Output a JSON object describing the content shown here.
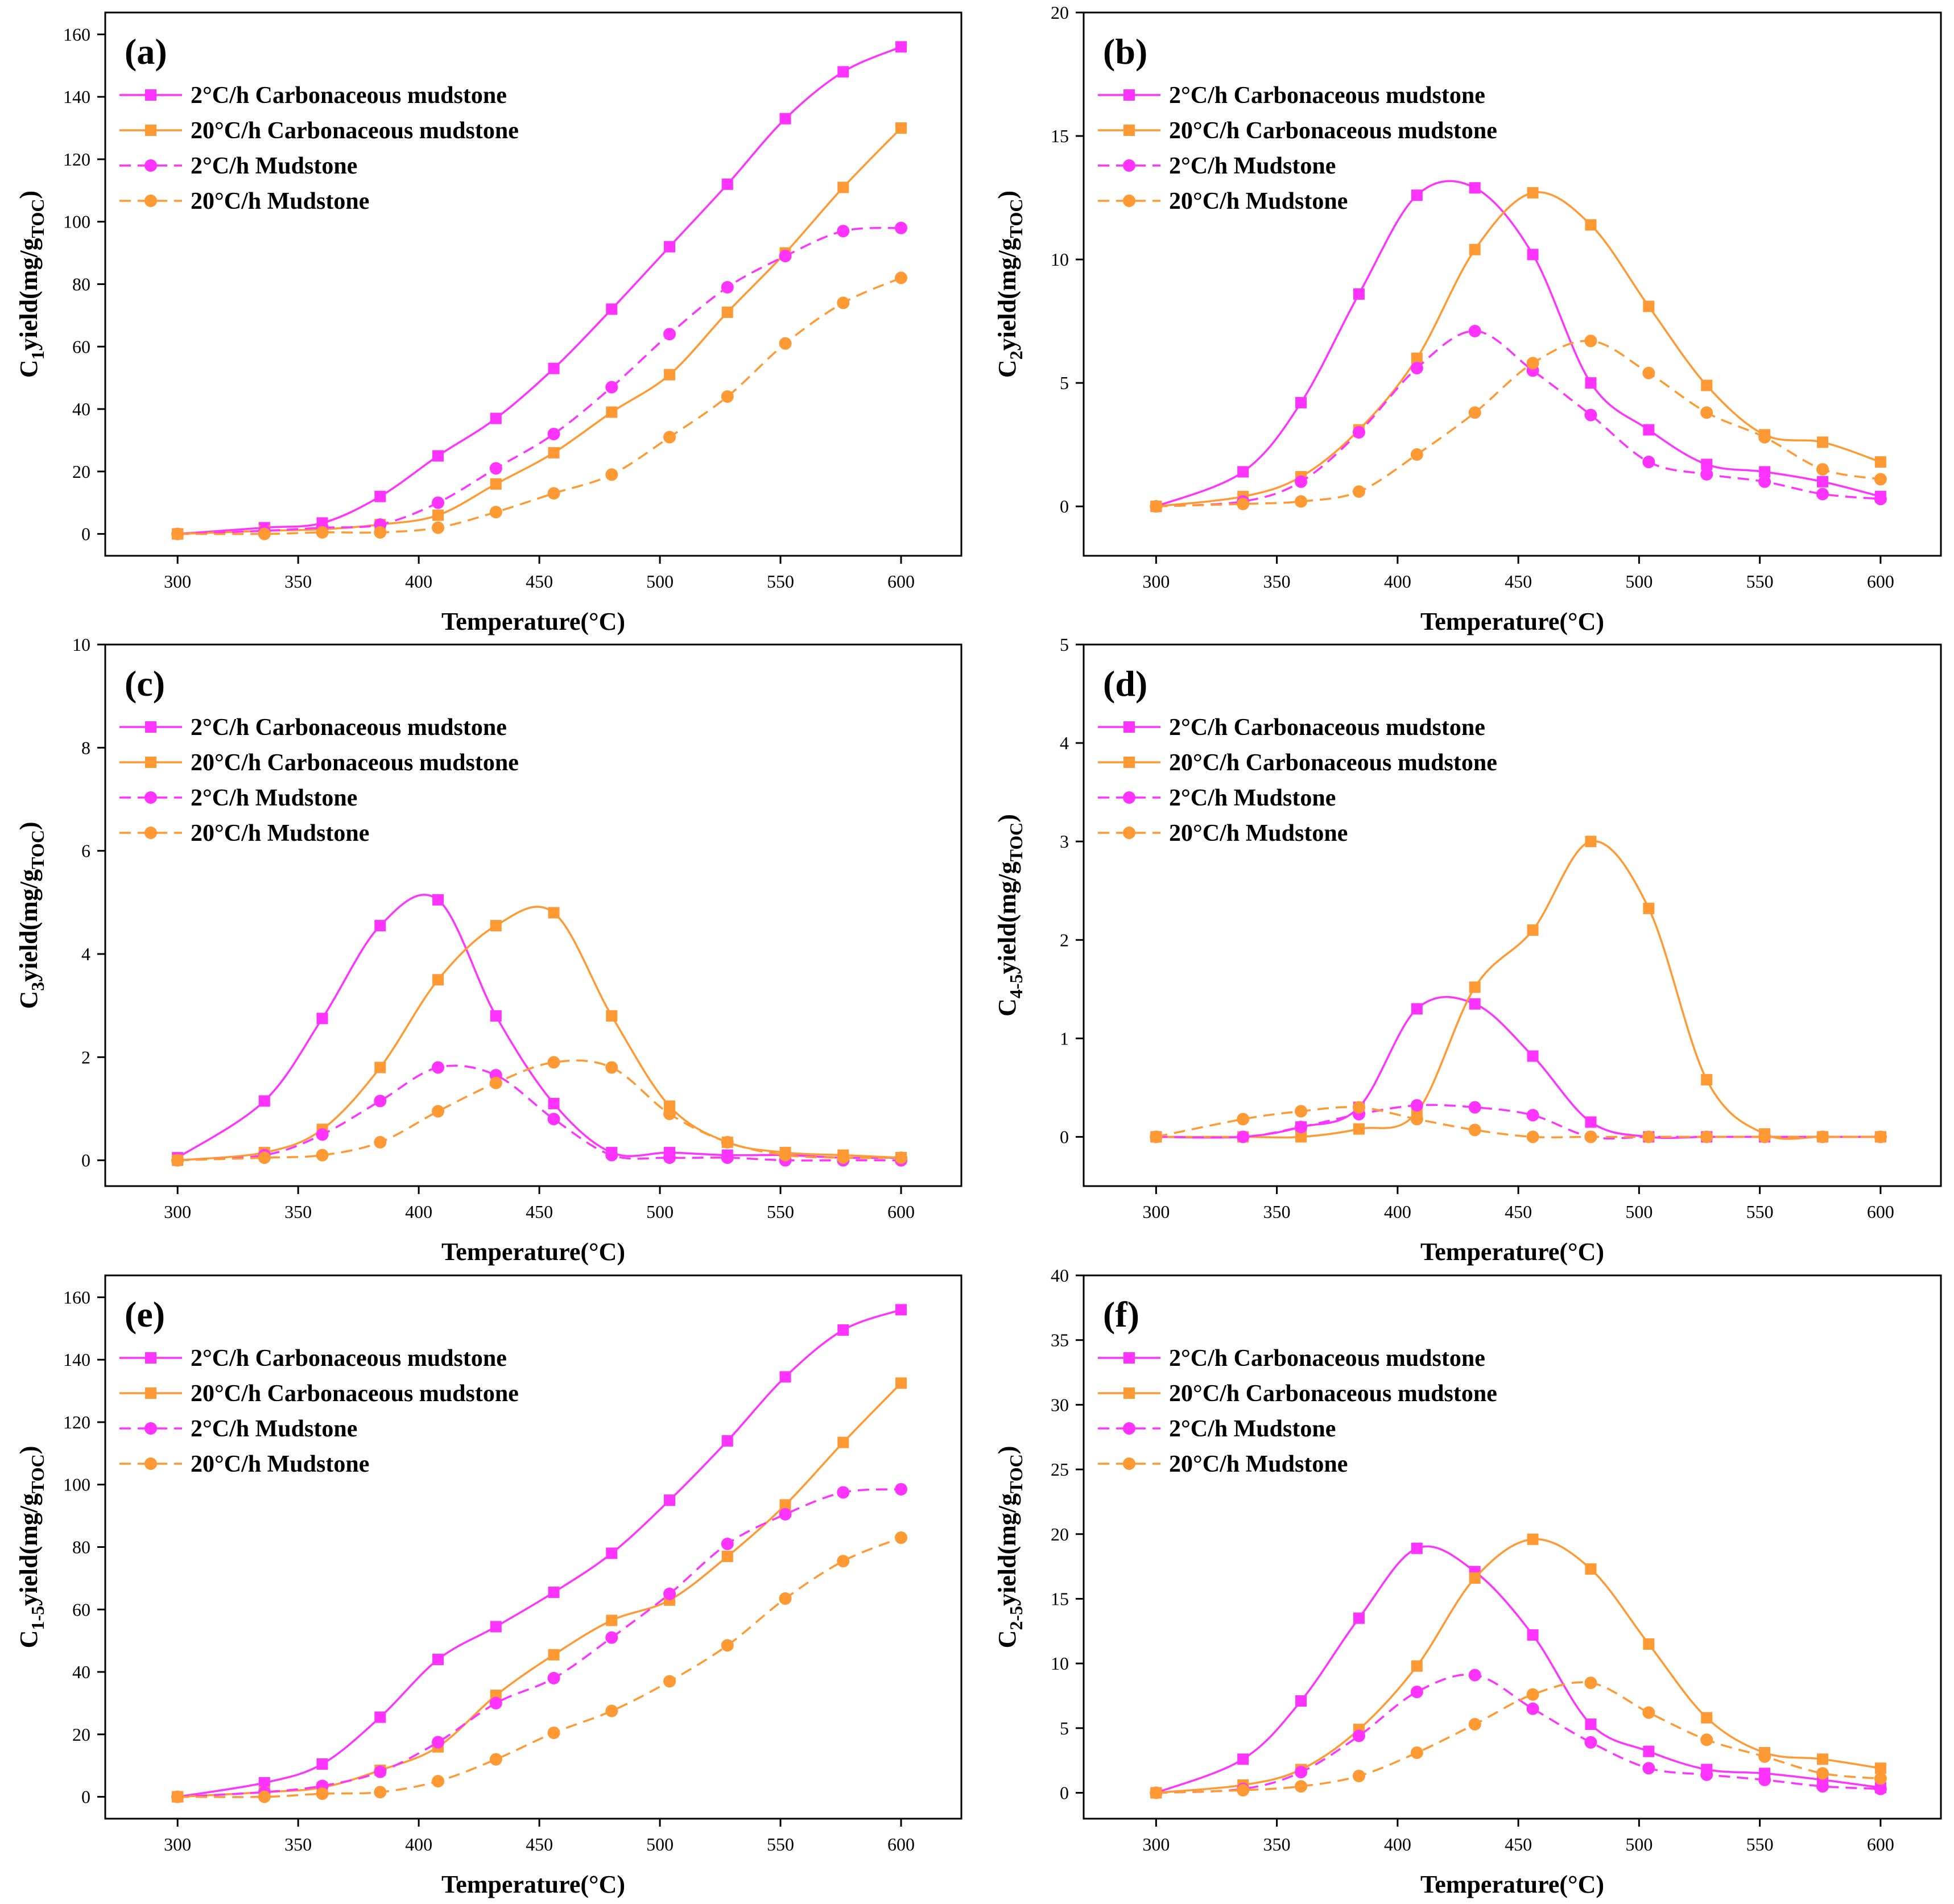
{
  "figure": {
    "x_label": "Temperature(°C)",
    "legend_labels": [
      "2°C/h Carbonaceous mudstone",
      "20°C/h Carbonaceous mudstone",
      "2°C/h Mudstone",
      "20°C/h Mudstone"
    ],
    "colors": {
      "magenta": "#ff33ff",
      "orange": "#ff9933",
      "axis": "#000000"
    }
  },
  "chart_data": [
    {
      "type": "line",
      "panel": "(a)",
      "ylabel_main": "C",
      "ylabel_sub": "1",
      "ylabel_rest": "yield(mg/g",
      "ylabel_sub2": "TOC",
      "ylabel_end": ")",
      "xlabel": "Temperature(°C)",
      "xlim": [
        270,
        625
      ],
      "ylim": [
        -7,
        167
      ],
      "xticks": [
        300,
        350,
        400,
        450,
        500,
        550,
        600
      ],
      "yticks": [
        0,
        20,
        40,
        60,
        80,
        100,
        120,
        140,
        160
      ],
      "x": [
        300,
        336,
        360,
        384,
        408,
        432,
        456,
        480,
        504,
        528,
        552,
        576,
        600
      ],
      "series": [
        {
          "name": "2°C/h Carbonaceous mudstone",
          "color": "#ff33ff",
          "marker": "square",
          "dash": false,
          "values": [
            0,
            2,
            3.5,
            12,
            25,
            37,
            53,
            72,
            92,
            112,
            133,
            148,
            156
          ]
        },
        {
          "name": "20°C/h Carbonaceous mudstone",
          "color": "#ff9933",
          "marker": "square",
          "dash": false,
          "values": [
            0,
            1,
            1.5,
            3,
            6,
            16,
            26,
            39,
            51,
            71,
            90,
            111,
            130
          ]
        },
        {
          "name": "2°C/h Mudstone",
          "color": "#ff33ff",
          "marker": "circle",
          "dash": true,
          "values": [
            0,
            1,
            2,
            3,
            10,
            21,
            32,
            47,
            64,
            79,
            89,
            97,
            98
          ]
        },
        {
          "name": "20°C/h Mudstone",
          "color": "#ff9933",
          "marker": "circle",
          "dash": true,
          "values": [
            0,
            0,
            0.5,
            0.5,
            2,
            7,
            13,
            19,
            31,
            44,
            61,
            74,
            82
          ]
        }
      ]
    },
    {
      "type": "line",
      "panel": "(b)",
      "ylabel_main": "C",
      "ylabel_sub": "2",
      "ylabel_rest": "yield(mg/g",
      "ylabel_sub2": "TOC",
      "ylabel_end": ")",
      "xlabel": "Temperature(°C)",
      "xlim": [
        270,
        625
      ],
      "ylim": [
        -2,
        20
      ],
      "xticks": [
        300,
        350,
        400,
        450,
        500,
        550,
        600
      ],
      "yticks": [
        0,
        5,
        10,
        15,
        20
      ],
      "x": [
        300,
        336,
        360,
        384,
        408,
        432,
        456,
        480,
        504,
        528,
        552,
        576,
        600
      ],
      "series": [
        {
          "name": "2°C/h Carbonaceous mudstone",
          "color": "#ff33ff",
          "marker": "square",
          "dash": false,
          "values": [
            0,
            1.4,
            4.2,
            8.6,
            12.6,
            12.9,
            10.2,
            5.0,
            3.1,
            1.7,
            1.4,
            1.0,
            0.4
          ]
        },
        {
          "name": "20°C/h Carbonaceous mudstone",
          "color": "#ff9933",
          "marker": "square",
          "dash": false,
          "values": [
            0,
            0.4,
            1.2,
            3.1,
            6.0,
            10.4,
            12.7,
            11.4,
            8.1,
            4.9,
            2.9,
            2.6,
            1.8
          ]
        },
        {
          "name": "2°C/h Mudstone",
          "color": "#ff33ff",
          "marker": "circle",
          "dash": true,
          "values": [
            0,
            0.2,
            1.0,
            3.0,
            5.6,
            7.1,
            5.5,
            3.7,
            1.8,
            1.3,
            1.0,
            0.5,
            0.3
          ]
        },
        {
          "name": "20°C/h Mudstone",
          "color": "#ff9933",
          "marker": "circle",
          "dash": true,
          "values": [
            0,
            0.1,
            0.2,
            0.6,
            2.1,
            3.8,
            5.8,
            6.7,
            5.4,
            3.8,
            2.8,
            1.5,
            1.1
          ]
        }
      ]
    },
    {
      "type": "line",
      "panel": "(c)",
      "ylabel_main": "C",
      "ylabel_sub": "3",
      "ylabel_rest": "yield(mg/g",
      "ylabel_sub2": "TOC",
      "ylabel_end": ")",
      "xlabel": "Temperature(°C)",
      "xlim": [
        270,
        625
      ],
      "ylim": [
        -0.5,
        10
      ],
      "xticks": [
        300,
        350,
        400,
        450,
        500,
        550,
        600
      ],
      "yticks": [
        0,
        2,
        4,
        6,
        8,
        10
      ],
      "x": [
        300,
        336,
        360,
        384,
        408,
        432,
        456,
        480,
        504,
        528,
        552,
        576,
        600
      ],
      "series": [
        {
          "name": "2°C/h Carbonaceous mudstone",
          "color": "#ff33ff",
          "marker": "square",
          "dash": false,
          "values": [
            0.05,
            1.15,
            2.75,
            4.55,
            5.05,
            2.8,
            1.1,
            0.15,
            0.15,
            0.1,
            0.1,
            0.05,
            0.05
          ]
        },
        {
          "name": "20°C/h Carbonaceous mudstone",
          "color": "#ff9933",
          "marker": "square",
          "dash": false,
          "values": [
            0,
            0.15,
            0.6,
            1.8,
            3.5,
            4.55,
            4.8,
            2.8,
            1.05,
            0.35,
            0.15,
            0.1,
            0.05
          ]
        },
        {
          "name": "2°C/h Mudstone",
          "color": "#ff33ff",
          "marker": "circle",
          "dash": true,
          "values": [
            0,
            0.1,
            0.5,
            1.15,
            1.8,
            1.65,
            0.8,
            0.1,
            0.05,
            0.05,
            0,
            0,
            0
          ]
        },
        {
          "name": "20°C/h Mudstone",
          "color": "#ff9933",
          "marker": "circle",
          "dash": true,
          "values": [
            0,
            0.05,
            0.1,
            0.35,
            0.95,
            1.5,
            1.9,
            1.8,
            0.9,
            0.35,
            0.1,
            0.05,
            0.05
          ]
        }
      ]
    },
    {
      "type": "line",
      "panel": "(d)",
      "ylabel_main": "C",
      "ylabel_sub": "4-5",
      "ylabel_rest": "yield(mg/g",
      "ylabel_sub2": "TOC",
      "ylabel_end": ")",
      "xlabel": "Temperature(°C)",
      "xlim": [
        270,
        625
      ],
      "ylim": [
        -0.5,
        5
      ],
      "xticks": [
        300,
        350,
        400,
        450,
        500,
        550,
        600
      ],
      "yticks": [
        0,
        1,
        2,
        3,
        4,
        5
      ],
      "x": [
        300,
        336,
        360,
        384,
        408,
        432,
        456,
        480,
        504,
        528,
        552,
        576,
        600
      ],
      "series": [
        {
          "name": "2°C/h Carbonaceous mudstone",
          "color": "#ff33ff",
          "marker": "square",
          "dash": false,
          "values": [
            0,
            0,
            0.1,
            0.3,
            1.3,
            1.35,
            0.82,
            0.15,
            0,
            0,
            0,
            0,
            0
          ]
        },
        {
          "name": "20°C/h Carbonaceous mudstone",
          "color": "#ff9933",
          "marker": "square",
          "dash": false,
          "values": [
            0,
            0,
            0,
            0.08,
            0.25,
            1.52,
            2.1,
            3.0,
            2.32,
            0.58,
            0.03,
            0,
            0
          ]
        },
        {
          "name": "2°C/h Mudstone",
          "color": "#ff33ff",
          "marker": "circle",
          "dash": true,
          "values": [
            0,
            0,
            0.1,
            0.23,
            0.32,
            0.3,
            0.22,
            0,
            0,
            0,
            0,
            0,
            0
          ]
        },
        {
          "name": "20°C/h Mudstone",
          "color": "#ff9933",
          "marker": "circle",
          "dash": true,
          "values": [
            0,
            0.18,
            0.26,
            0.3,
            0.18,
            0.07,
            0,
            0,
            0,
            0,
            0,
            0,
            0
          ]
        }
      ]
    },
    {
      "type": "line",
      "panel": "(e)",
      "ylabel_main": "C",
      "ylabel_sub": "1-5",
      "ylabel_rest": "yield(mg/g",
      "ylabel_sub2": "TOC",
      "ylabel_end": ")",
      "xlabel": "Temperature(°C)",
      "xlim": [
        270,
        625
      ],
      "ylim": [
        -7,
        167
      ],
      "xticks": [
        300,
        350,
        400,
        450,
        500,
        550,
        600
      ],
      "yticks": [
        0,
        20,
        40,
        60,
        80,
        100,
        120,
        140,
        160
      ],
      "x": [
        300,
        336,
        360,
        384,
        408,
        432,
        456,
        480,
        504,
        528,
        552,
        576,
        600
      ],
      "series": [
        {
          "name": "2°C/h Carbonaceous mudstone",
          "color": "#ff33ff",
          "marker": "square",
          "dash": false,
          "values": [
            0,
            4.5,
            10.5,
            25.5,
            44,
            54.5,
            65.5,
            78,
            95,
            114,
            134.5,
            149.5,
            156
          ]
        },
        {
          "name": "20°C/h Carbonaceous mudstone",
          "color": "#ff9933",
          "marker": "square",
          "dash": false,
          "values": [
            0,
            1.5,
            3,
            8.5,
            16,
            32.5,
            45.5,
            56.5,
            63,
            77,
            93.5,
            113.5,
            132.5
          ]
        },
        {
          "name": "2°C/h Mudstone",
          "color": "#ff33ff",
          "marker": "circle",
          "dash": true,
          "values": [
            0,
            1.5,
            3.5,
            8,
            17.5,
            30,
            38,
            51,
            65,
            81,
            90.5,
            97.5,
            98.5
          ]
        },
        {
          "name": "20°C/h Mudstone",
          "color": "#ff9933",
          "marker": "circle",
          "dash": true,
          "values": [
            0,
            0,
            1,
            1.5,
            5,
            12,
            20.5,
            27.5,
            37,
            48.5,
            63.5,
            75.5,
            83
          ]
        }
      ]
    },
    {
      "type": "line",
      "panel": "(f)",
      "ylabel_main": "C",
      "ylabel_sub": "2-5",
      "ylabel_rest": "yield(mg/g",
      "ylabel_sub2": "TOC",
      "ylabel_end": ")",
      "xlabel": "Temperature(°C)",
      "xlim": [
        270,
        625
      ],
      "ylim": [
        -2,
        40
      ],
      "xticks": [
        300,
        350,
        400,
        450,
        500,
        550,
        600
      ],
      "yticks": [
        0,
        5,
        10,
        15,
        20,
        25,
        30,
        35,
        40
      ],
      "x": [
        300,
        336,
        360,
        384,
        408,
        432,
        456,
        480,
        504,
        528,
        552,
        576,
        600
      ],
      "series": [
        {
          "name": "2°C/h Carbonaceous mudstone",
          "color": "#ff33ff",
          "marker": "square",
          "dash": false,
          "values": [
            0,
            2.6,
            7.1,
            13.5,
            18.9,
            17.1,
            12.2,
            5.3,
            3.2,
            1.8,
            1.5,
            1.0,
            0.4
          ]
        },
        {
          "name": "20°C/h Carbonaceous mudstone",
          "color": "#ff9933",
          "marker": "square",
          "dash": false,
          "values": [
            0,
            0.6,
            1.8,
            4.9,
            9.8,
            16.6,
            19.6,
            17.3,
            11.5,
            5.8,
            3.1,
            2.6,
            1.9
          ]
        },
        {
          "name": "2°C/h Mudstone",
          "color": "#ff33ff",
          "marker": "circle",
          "dash": true,
          "values": [
            0,
            0.3,
            1.6,
            4.4,
            7.8,
            9.1,
            6.5,
            3.9,
            1.9,
            1.4,
            1.0,
            0.5,
            0.3
          ]
        },
        {
          "name": "20°C/h Mudstone",
          "color": "#ff9933",
          "marker": "circle",
          "dash": true,
          "values": [
            0,
            0.2,
            0.5,
            1.3,
            3.1,
            5.3,
            7.6,
            8.5,
            6.2,
            4.1,
            2.8,
            1.5,
            1.1
          ]
        }
      ]
    }
  ]
}
